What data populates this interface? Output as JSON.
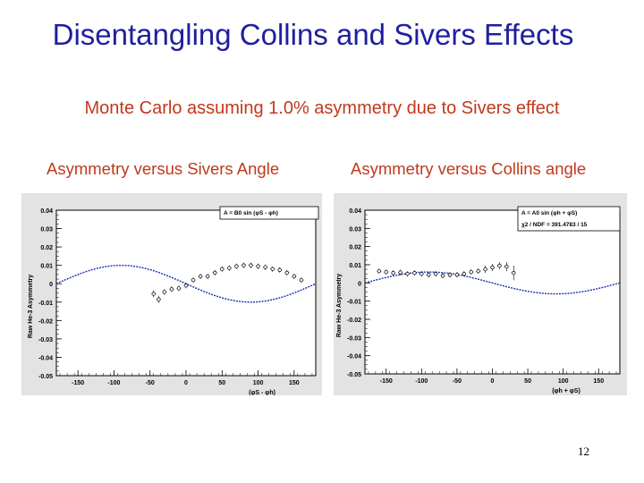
{
  "slide": {
    "title": "Disentangling Collins and Sivers Effects",
    "subtitle": "Monte Carlo assuming 1.0% asymmetry due to Sivers effect",
    "caption_left": "Asymmetry versus Sivers Angle",
    "caption_right": "Asymmetry versus Collins angle",
    "page_number": "12"
  },
  "colors": {
    "title": "#1f1f9f",
    "text_orange": "#c0391b",
    "fit_curve": "#1a2fb0",
    "panel_bg": "#e3e3e3"
  },
  "chart_data": [
    {
      "type": "scatter",
      "ylabel": "Raw He-3 Asymmetry",
      "xlabel": "(φS - φh)",
      "xlim": [
        -180,
        180
      ],
      "ylim": [
        -0.05,
        0.04
      ],
      "xticks": [
        "-150",
        "-100",
        "-50",
        "0",
        "50",
        "100",
        "150"
      ],
      "yticks": [
        "0.04",
        "0.03",
        "0.02",
        "0.01",
        "0",
        "-0.01",
        "-0.02",
        "-0.03",
        "-0.04",
        "-0.05"
      ],
      "legend": [
        "A = B0 sin (φS - φh)"
      ],
      "fit": {
        "amplitude": 0.01,
        "phase": 0,
        "sign": -1
      },
      "series": [
        {
          "points": [
            {
              "x": -45,
              "y": -0.0055,
              "err": 0.002
            },
            {
              "x": -38,
              "y": -0.0085,
              "err": 0.002
            },
            {
              "x": -30,
              "y": -0.0045,
              "err": 0.0015
            },
            {
              "x": -20,
              "y": -0.003,
              "err": 0.0015
            },
            {
              "x": -10,
              "y": -0.0025,
              "err": 0.0015
            },
            {
              "x": 0,
              "y": -0.001,
              "err": 0.0015
            },
            {
              "x": 10,
              "y": 0.002,
              "err": 0.0015
            },
            {
              "x": 20,
              "y": 0.004,
              "err": 0.0015
            },
            {
              "x": 30,
              "y": 0.004,
              "err": 0.0015
            },
            {
              "x": 40,
              "y": 0.006,
              "err": 0.0015
            },
            {
              "x": 50,
              "y": 0.008,
              "err": 0.0015
            },
            {
              "x": 60,
              "y": 0.0085,
              "err": 0.0015
            },
            {
              "x": 70,
              "y": 0.0095,
              "err": 0.0015
            },
            {
              "x": 80,
              "y": 0.01,
              "err": 0.0015
            },
            {
              "x": 90,
              "y": 0.01,
              "err": 0.0015
            },
            {
              "x": 100,
              "y": 0.0095,
              "err": 0.0015
            },
            {
              "x": 110,
              "y": 0.009,
              "err": 0.0015
            },
            {
              "x": 120,
              "y": 0.008,
              "err": 0.0015
            },
            {
              "x": 130,
              "y": 0.0075,
              "err": 0.0015
            },
            {
              "x": 140,
              "y": 0.006,
              "err": 0.0015
            },
            {
              "x": 150,
              "y": 0.004,
              "err": 0.0015
            },
            {
              "x": 160,
              "y": 0.002,
              "err": 0.0015
            }
          ]
        }
      ]
    },
    {
      "type": "scatter",
      "ylabel": "Raw He-3 Asymmetry",
      "xlabel": "(φh + φS)",
      "xlim": [
        -180,
        180
      ],
      "ylim": [
        -0.05,
        0.04
      ],
      "xticks": [
        "-150",
        "-100",
        "-50",
        "0",
        "50",
        "100",
        "150"
      ],
      "yticks": [
        "0.04",
        "0.03",
        "0.02",
        "0.01",
        "0",
        "-0.01",
        "-0.02",
        "-0.03",
        "-0.04",
        "-0.05"
      ],
      "legend": [
        "A = A0 sin (φh + φS)",
        "χ2 / NDF = 391.4783 / 15"
      ],
      "fit": {
        "amplitude": 0.006,
        "phase": 0,
        "sign": -1
      },
      "series": [
        {
          "points": [
            {
              "x": -160,
              "y": 0.0065,
              "err": 0.0015
            },
            {
              "x": -150,
              "y": 0.006,
              "err": 0.0015
            },
            {
              "x": -140,
              "y": 0.0055,
              "err": 0.0015
            },
            {
              "x": -130,
              "y": 0.0058,
              "err": 0.0015
            },
            {
              "x": -120,
              "y": 0.005,
              "err": 0.0015
            },
            {
              "x": -110,
              "y": 0.0055,
              "err": 0.0015
            },
            {
              "x": -100,
              "y": 0.005,
              "err": 0.0015
            },
            {
              "x": -90,
              "y": 0.0045,
              "err": 0.0015
            },
            {
              "x": -80,
              "y": 0.005,
              "err": 0.0015
            },
            {
              "x": -70,
              "y": 0.004,
              "err": 0.0015
            },
            {
              "x": -60,
              "y": 0.0045,
              "err": 0.0015
            },
            {
              "x": -50,
              "y": 0.0045,
              "err": 0.0015
            },
            {
              "x": -40,
              "y": 0.005,
              "err": 0.0015
            },
            {
              "x": -30,
              "y": 0.006,
              "err": 0.0015
            },
            {
              "x": -20,
              "y": 0.0065,
              "err": 0.0015
            },
            {
              "x": -10,
              "y": 0.0075,
              "err": 0.002
            },
            {
              "x": 0,
              "y": 0.0085,
              "err": 0.002
            },
            {
              "x": 10,
              "y": 0.0095,
              "err": 0.002
            },
            {
              "x": 20,
              "y": 0.009,
              "err": 0.0025
            },
            {
              "x": 30,
              "y": 0.0055,
              "err": 0.004
            }
          ]
        }
      ]
    }
  ]
}
